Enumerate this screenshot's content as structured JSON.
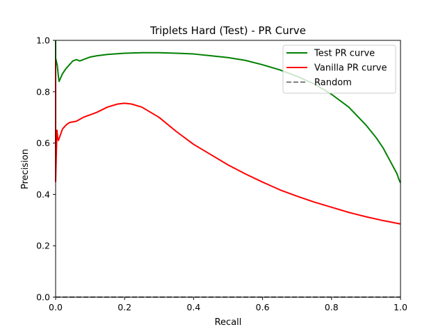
{
  "chart_data": {
    "type": "line",
    "title": "Triplets Hard (Test) - PR Curve",
    "xlabel": "Recall",
    "ylabel": "Precision",
    "xlim": [
      0,
      1
    ],
    "ylim": [
      0,
      1
    ],
    "xticks": [
      "0.0",
      "0.2",
      "0.4",
      "0.6",
      "0.8",
      "1.0"
    ],
    "yticks": [
      "0.0",
      "0.2",
      "0.4",
      "0.6",
      "0.8",
      "1.0"
    ],
    "grid": false,
    "legend_position": "top-right",
    "series": [
      {
        "name": "Test PR curve",
        "color": "#008000",
        "style": "solid",
        "x": [
          0.0,
          0.0,
          0.002,
          0.005,
          0.008,
          0.01,
          0.015,
          0.02,
          0.03,
          0.04,
          0.05,
          0.06,
          0.07,
          0.08,
          0.1,
          0.12,
          0.15,
          0.2,
          0.25,
          0.3,
          0.35,
          0.4,
          0.45,
          0.5,
          0.55,
          0.6,
          0.65,
          0.7,
          0.75,
          0.8,
          0.85,
          0.9,
          0.93,
          0.95,
          0.97,
          0.98,
          0.99,
          0.995,
          1.0
        ],
        "y": [
          1.0,
          0.93,
          0.92,
          0.9,
          0.86,
          0.84,
          0.855,
          0.87,
          0.89,
          0.905,
          0.92,
          0.925,
          0.92,
          0.925,
          0.935,
          0.94,
          0.945,
          0.95,
          0.952,
          0.952,
          0.95,
          0.947,
          0.94,
          0.933,
          0.922,
          0.905,
          0.885,
          0.86,
          0.83,
          0.79,
          0.74,
          0.67,
          0.62,
          0.58,
          0.53,
          0.505,
          0.48,
          0.46,
          0.445
        ]
      },
      {
        "name": "Vanilla PR curve",
        "color": "#ff0000",
        "style": "solid",
        "x": [
          0.0,
          0.0,
          0.002,
          0.004,
          0.006,
          0.008,
          0.012,
          0.02,
          0.03,
          0.04,
          0.06,
          0.08,
          0.1,
          0.12,
          0.15,
          0.18,
          0.2,
          0.22,
          0.25,
          0.3,
          0.35,
          0.4,
          0.45,
          0.5,
          0.55,
          0.6,
          0.65,
          0.7,
          0.75,
          0.8,
          0.85,
          0.9,
          0.95,
          1.0
        ],
        "y": [
          1.0,
          0.45,
          0.56,
          0.65,
          0.62,
          0.61,
          0.625,
          0.655,
          0.67,
          0.68,
          0.685,
          0.7,
          0.71,
          0.72,
          0.74,
          0.752,
          0.755,
          0.752,
          0.74,
          0.7,
          0.645,
          0.595,
          0.555,
          0.515,
          0.48,
          0.448,
          0.418,
          0.393,
          0.37,
          0.35,
          0.33,
          0.313,
          0.298,
          0.285
        ]
      },
      {
        "name": "Random",
        "color": "#808080",
        "style": "dashed",
        "x": [
          0.0,
          1.0
        ],
        "y": [
          0.0,
          0.0
        ]
      }
    ]
  }
}
